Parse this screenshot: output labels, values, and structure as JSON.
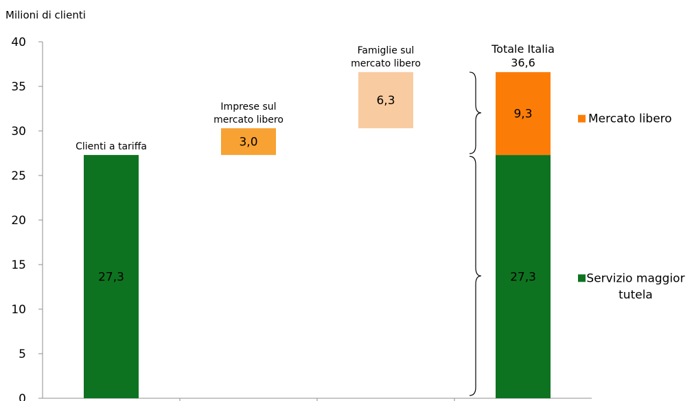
{
  "chart_data": {
    "type": "bar",
    "subtype": "waterfall",
    "ylabel": "Milioni di clienti",
    "ylim": [
      0,
      40
    ],
    "yticks": [
      0,
      5,
      10,
      15,
      20,
      25,
      30,
      35,
      40
    ],
    "grid": false,
    "legend_position": "right",
    "categories": [
      "Clienti a tariffa",
      "Imprese sul mercato libero",
      "Famiglie sul mercato libero",
      "Totale Italia"
    ],
    "category_labels": [
      [
        "Clienti a tariffa"
      ],
      [
        "Imprese sul",
        "mercato libero"
      ],
      [
        "Famiglie sul",
        "mercato libero"
      ],
      [
        "Totale Italia"
      ]
    ],
    "bars": [
      {
        "category": "Clienti a tariffa",
        "base": 0,
        "value": 27.3,
        "label": "27,3",
        "color": "#0e7320"
      },
      {
        "category": "Imprese sul mercato libero",
        "base": 27.3,
        "value": 3.0,
        "label": "3,0",
        "color": "#f7a233"
      },
      {
        "category": "Famiglie sul mercato libero",
        "base": 30.3,
        "value": 6.3,
        "label": "6,3",
        "color": "#f9cba1"
      },
      {
        "category": "Totale Italia",
        "base": 0,
        "value": 27.3,
        "label": "27,3",
        "color": "#0e7320"
      },
      {
        "category": "Totale Italia",
        "base": 27.3,
        "value": 9.3,
        "label": "9,3",
        "color": "#fb7d07"
      }
    ],
    "total": {
      "value": 36.6,
      "label": "36,6"
    },
    "legend": [
      {
        "name": "Mercato libero",
        "color": "#fb7d07"
      },
      {
        "name": "Servizio maggior tutela",
        "color": "#0e7320"
      }
    ]
  }
}
